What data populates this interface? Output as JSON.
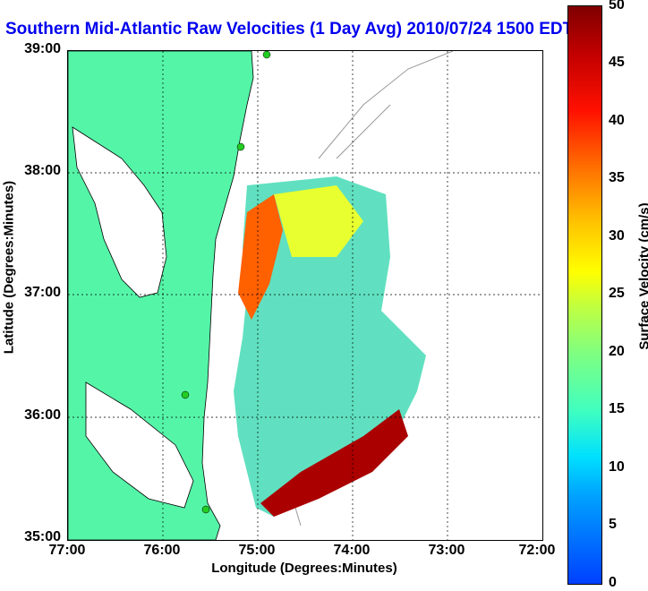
{
  "title": "Southern Mid-Atlantic Raw Velocities (1 Day Avg) 2010/07/24 1500 EDT",
  "axes": {
    "xlabel": "Longitude (Degrees:Minutes)",
    "ylabel": "Latitude (Degrees:Minutes)",
    "xticks": [
      "77:00",
      "76:00",
      "75:00",
      "74:00",
      "73:00",
      "72:00"
    ],
    "yticks": [
      "39:00",
      "38:00",
      "37:00",
      "36:00",
      "35:00"
    ]
  },
  "colorbar": {
    "label": "Surface Velocity (cm/s)",
    "ticks": [
      "50",
      "45",
      "40",
      "35",
      "30",
      "25",
      "20",
      "15",
      "10",
      "5",
      "0"
    ],
    "range": [
      0,
      50
    ]
  },
  "colors": {
    "land": "#55f5a8",
    "title": "#0000ee",
    "station": "#22cc22"
  }
}
